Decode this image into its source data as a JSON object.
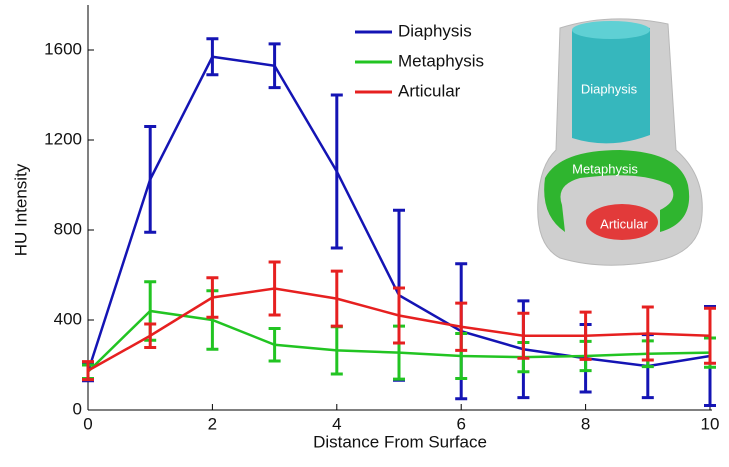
{
  "chart_data": {
    "type": "errorbar-line",
    "xlabel": "Distance From Surface",
    "ylabel": "HU Intensity",
    "x": [
      0,
      1,
      2,
      3,
      4,
      5,
      6,
      7,
      8,
      9,
      10
    ],
    "xlim": [
      0,
      10
    ],
    "xticks": [
      0,
      2,
      4,
      6,
      8,
      10
    ],
    "ylim": [
      0,
      1800
    ],
    "yticks": [
      0,
      400,
      800,
      1200,
      1600
    ],
    "legend": "upper center",
    "series": [
      {
        "name": "Diaphysis",
        "color": "#1414b4",
        "values": [
          170,
          1025,
          1570,
          1530,
          1060,
          510,
          350,
          270,
          230,
          195,
          240
        ],
        "errors": [
          40,
          235,
          80,
          97,
          340,
          378,
          300,
          215,
          150,
          140,
          220
        ]
      },
      {
        "name": "Metaphysis",
        "color": "#22c422",
        "values": [
          170,
          440,
          400,
          290,
          265,
          255,
          240,
          235,
          240,
          250,
          255
        ],
        "errors": [
          30,
          130,
          130,
          72,
          105,
          118,
          100,
          65,
          65,
          57,
          65
        ]
      },
      {
        "name": "Articular",
        "color": "#e62020",
        "values": [
          175,
          330,
          500,
          540,
          495,
          420,
          370,
          330,
          330,
          340,
          330
        ],
        "errors": [
          40,
          52,
          88,
          118,
          122,
          122,
          105,
          100,
          105,
          118,
          122
        ]
      }
    ],
    "annotations": [
      "Diaphysis",
      "Metaphysis",
      "Articular"
    ]
  }
}
